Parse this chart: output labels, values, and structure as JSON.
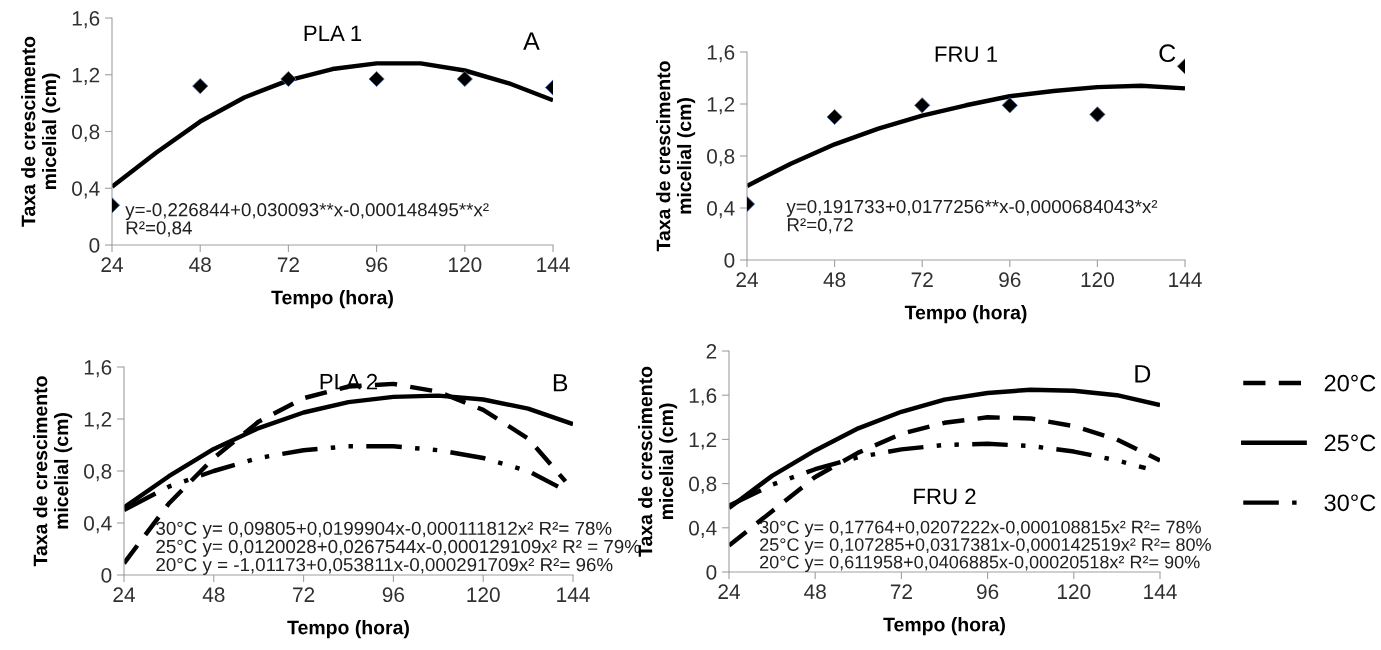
{
  "chart_data": [
    {
      "type": "scatter",
      "title": "PLA 1",
      "xlabel": "Tempo (hora)",
      "ylabel": "Taxa de crescimento\nmicelial (cm)",
      "annotations": [
        "A",
        "y=-0,226844+0,030093**x-0,000148495**x²\nR²=0,84"
      ],
      "xlim": [
        24,
        144
      ],
      "xticks": [
        24,
        48,
        72,
        96,
        120,
        144
      ],
      "ylim": [
        0,
        1.6
      ],
      "yticks": [
        0,
        {
          "value": 0.4,
          "label": "0,4"
        },
        {
          "value": 0.8,
          "label": "0,8"
        },
        {
          "value": 1.2,
          "label": "1,2"
        },
        {
          "value": 1.6,
          "label": "1,6"
        }
      ],
      "grid": false,
      "series": [
        {
          "type": "scatter",
          "marker": "diamond",
          "color": "#000000",
          "x": [
            24,
            48,
            72,
            96,
            120,
            144
          ],
          "values": [
            0.28,
            1.12,
            1.17,
            1.17,
            1.17,
            1.11
          ]
        },
        {
          "type": "line",
          "color": "#000000",
          "line_style": "solid",
          "x": [
            24,
            36,
            48,
            60,
            72,
            84,
            96,
            108,
            120,
            132,
            144
          ],
          "values": [
            0.41,
            0.65,
            0.87,
            1.04,
            1.16,
            1.24,
            1.28,
            1.28,
            1.23,
            1.14,
            1.02
          ]
        }
      ]
    },
    {
      "type": "scatter",
      "title": "FRU 1",
      "xlabel": "Tempo (hora)",
      "ylabel": "Taxa de crescimento\nmicelial (cm)",
      "annotations": [
        "C",
        "y=0,191733+0,0177256**x-0,0000684043*x²\nR²=0,72"
      ],
      "xlim": [
        24,
        144
      ],
      "xticks": [
        24,
        48,
        72,
        96,
        120,
        144
      ],
      "ylim": [
        0,
        1.6
      ],
      "yticks": [
        0,
        {
          "value": 0.4,
          "label": "0,4"
        },
        {
          "value": 0.8,
          "label": "0,8"
        },
        {
          "value": 1.2,
          "label": "1,2"
        },
        {
          "value": 1.6,
          "label": "1,6"
        }
      ],
      "grid": false,
      "series": [
        {
          "type": "scatter",
          "marker": "diamond",
          "color": "#000000",
          "x": [
            24,
            48,
            72,
            96,
            120,
            144
          ],
          "values": [
            0.43,
            1.1,
            1.19,
            1.19,
            1.12,
            1.49
          ]
        },
        {
          "type": "line",
          "color": "#000000",
          "line_style": "solid",
          "x": [
            24,
            36,
            48,
            60,
            72,
            84,
            96,
            108,
            120,
            132,
            144
          ],
          "values": [
            0.57,
            0.74,
            0.89,
            1.01,
            1.11,
            1.19,
            1.26,
            1.3,
            1.33,
            1.34,
            1.32
          ]
        }
      ]
    },
    {
      "type": "line",
      "title": "PLA 2",
      "xlabel": "Tempo (hora)",
      "ylabel": "Taxa de crescimento\nmicelial (cm)",
      "annotations": [
        "B",
        "30°C y= 0,09805+0,0199904x-0,000111812x² R²= 78%\n25°C y= 0,0120028+0,0267544x-0,000129109x² R² = 79%\n20°C y = -1,01173+0,053811x-0,000291709x² R²= 96%"
      ],
      "xlim": [
        24,
        144
      ],
      "xticks": [
        24,
        48,
        72,
        96,
        120,
        144
      ],
      "ylim": [
        0,
        1.6
      ],
      "yticks": [
        0,
        {
          "value": 0.4,
          "label": "0,4"
        },
        {
          "value": 0.8,
          "label": "0,8"
        },
        {
          "value": 1.2,
          "label": "1,2"
        },
        {
          "value": 1.6,
          "label": "1,6"
        }
      ],
      "grid": false,
      "series": [
        {
          "color": "#000000",
          "line_style": "dashed",
          "x": [
            24,
            36,
            48,
            60,
            72,
            84,
            96,
            108,
            120,
            132,
            142
          ],
          "values": [
            0.09,
            0.55,
            0.9,
            1.18,
            1.36,
            1.45,
            1.47,
            1.41,
            1.27,
            1.05,
            0.72
          ]
        },
        {
          "color": "#000000",
          "line_style": "solid",
          "x": [
            24,
            36,
            48,
            60,
            72,
            84,
            96,
            108,
            120,
            132,
            144
          ],
          "values": [
            0.52,
            0.76,
            0.97,
            1.13,
            1.25,
            1.33,
            1.37,
            1.38,
            1.35,
            1.28,
            1.16
          ]
        },
        {
          "color": "#000000",
          "line_style": "dashdotdot",
          "x": [
            24,
            36,
            48,
            60,
            72,
            84,
            96,
            108,
            120,
            132,
            140
          ],
          "values": [
            0.5,
            0.68,
            0.8,
            0.9,
            0.96,
            0.99,
            0.99,
            0.96,
            0.9,
            0.8,
            0.68
          ]
        }
      ]
    },
    {
      "type": "line",
      "title": "FRU 2",
      "xlabel": "Tempo (hora)",
      "ylabel": "Taxa de crescimento\nmicelial (cm)",
      "annotations": [
        "D",
        "30°C y= 0,17764+0,0207222x-0,000108815x² R²= 78%\n25°C y= 0,107285+0,0317381x-0,000142519x² R²= 80%\n20°C y= 0,611958+0,0406885x-0,00020518x² R²= 90%"
      ],
      "xlim": [
        24,
        144
      ],
      "xticks": [
        24,
        48,
        72,
        96,
        120,
        144
      ],
      "ylim": [
        0,
        2
      ],
      "yticks": [
        0,
        {
          "value": 0.4,
          "label": "0,4"
        },
        {
          "value": 0.8,
          "label": "0,8"
        },
        {
          "value": 1.2,
          "label": "1,2"
        },
        {
          "value": 1.6,
          "label": "1,6"
        },
        2
      ],
      "grid": false,
      "legend": "right",
      "series": [
        {
          "name": "20°C",
          "color": "#000000",
          "line_style": "dashed",
          "x": [
            24,
            36,
            48,
            60,
            72,
            84,
            96,
            108,
            120,
            132,
            144
          ],
          "values": [
            0.24,
            0.55,
            0.86,
            1.08,
            1.25,
            1.35,
            1.4,
            1.39,
            1.32,
            1.2,
            1.01
          ]
        },
        {
          "name": "25°C",
          "color": "#000000",
          "line_style": "solid",
          "x": [
            24,
            36,
            48,
            60,
            72,
            84,
            96,
            108,
            120,
            132,
            144
          ],
          "values": [
            0.58,
            0.87,
            1.1,
            1.3,
            1.45,
            1.56,
            1.62,
            1.65,
            1.64,
            1.6,
            1.51
          ]
        },
        {
          "name": "30°C",
          "color": "#000000",
          "line_style": "dashdotdot",
          "x": [
            24,
            36,
            48,
            60,
            72,
            84,
            96,
            108,
            120,
            132,
            140
          ],
          "values": [
            0.6,
            0.79,
            0.93,
            1.04,
            1.11,
            1.15,
            1.16,
            1.14,
            1.09,
            1.01,
            0.94
          ]
        }
      ]
    }
  ]
}
